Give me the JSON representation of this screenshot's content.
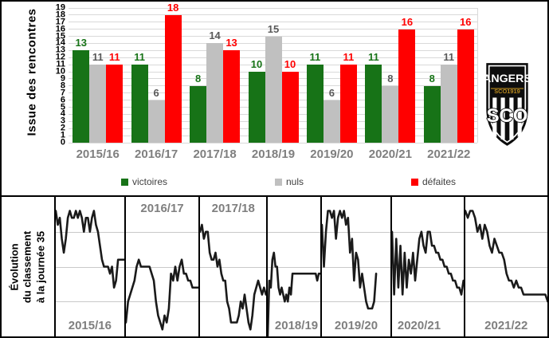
{
  "chart_data": [
    {
      "type": "bar",
      "title": "",
      "ylabel": "Issue des rencontres",
      "xlabel": "",
      "categories": [
        "2015/16",
        "2016/17",
        "2017/18",
        "2018/19",
        "2019/20",
        "2020/21",
        "2021/22"
      ],
      "series": [
        {
          "name": "victoires",
          "color": "#177317",
          "label_color": "#177317",
          "values": [
            13,
            11,
            8,
            10,
            11,
            11,
            8
          ]
        },
        {
          "name": "nuls",
          "color": "#c0c0c0",
          "label_color": "#595959",
          "values": [
            11,
            6,
            14,
            15,
            6,
            8,
            11
          ]
        },
        {
          "name": "défaites",
          "color": "#ff0000",
          "label_color": "#ff0000",
          "values": [
            11,
            18,
            13,
            10,
            11,
            16,
            16
          ]
        }
      ],
      "ylim": [
        0,
        19
      ],
      "ytick_step": 1,
      "grid": true,
      "legend_position": "bottom"
    },
    {
      "type": "line",
      "title": "Évolution du classement à la journée 35",
      "ylabel_lines": [
        "Évolution",
        "du classement",
        "à la journée 35"
      ],
      "y_axis": "classement (1 = premier, 20 = dernier, axe inversé)",
      "ylim": [
        1,
        20
      ],
      "gridlines_at": [
        5,
        10,
        15
      ],
      "x_max_journee": 35,
      "line_color": "#1a1a1a",
      "panels": [
        {
          "season": "2015/16",
          "label_pos": "bottom-center",
          "rankings": [
            2,
            4,
            3,
            6,
            8,
            6,
            3,
            2,
            3,
            3,
            2,
            3,
            2,
            3,
            5,
            3,
            3,
            5,
            3,
            2,
            4,
            5,
            7,
            9,
            10,
            10,
            10,
            11,
            10,
            13,
            12,
            9,
            9,
            9,
            9
          ]
        },
        {
          "season": "2016/17",
          "label_pos": "top-center",
          "rankings": [
            18,
            15,
            14,
            13,
            12,
            10,
            9,
            10,
            10,
            10,
            10,
            10,
            11,
            12,
            15,
            17,
            18,
            19,
            17,
            18,
            16,
            11,
            12,
            10,
            12,
            10,
            9,
            11,
            11,
            12,
            12,
            13,
            13,
            13,
            13
          ]
        },
        {
          "season": "2017/18",
          "label_pos": "top-center",
          "rankings": [
            5,
            4,
            6,
            5,
            5,
            8,
            9,
            9,
            8,
            10,
            9,
            11,
            12,
            12,
            15,
            16,
            18,
            18,
            18,
            18,
            17,
            15,
            16,
            14,
            16,
            18,
            19,
            17,
            14,
            13,
            12,
            13,
            14,
            13,
            14
          ]
        },
        {
          "season": "2018/19",
          "label_pos": "bottom-right",
          "rankings": [
            20,
            12,
            13,
            9,
            8,
            10,
            10,
            13,
            14,
            13,
            14,
            15,
            14,
            15,
            13,
            14,
            11,
            11,
            11,
            11,
            11,
            11,
            11,
            11,
            11,
            11,
            11,
            11,
            11,
            11,
            11,
            11,
            12,
            11,
            11
          ]
        },
        {
          "season": "2019/20",
          "label_pos": "bottom-center",
          "rankings": [
            4,
            10,
            5,
            2,
            2,
            3,
            2,
            6,
            3,
            2,
            3,
            2,
            4,
            3,
            8,
            6,
            12,
            8,
            9,
            13,
            11,
            13,
            15,
            16,
            16,
            16,
            15,
            11
          ]
        },
        {
          "season": "2020/21",
          "label_pos": "bottom-left",
          "rankings": [
            5,
            14,
            6,
            13,
            7,
            14,
            8,
            13,
            9,
            11,
            8,
            12,
            9,
            6,
            5,
            7,
            8,
            5,
            5,
            7,
            7,
            8,
            8,
            9,
            9,
            10,
            10,
            11,
            11,
            12,
            12,
            13,
            13,
            14,
            12
          ]
        },
        {
          "season": "2021/22",
          "label_pos": "bottom-center",
          "rankings": [
            2,
            3,
            2,
            2,
            3,
            5,
            4,
            6,
            4,
            5,
            7,
            8,
            6,
            7,
            8,
            8,
            9,
            11,
            12,
            12,
            13,
            12,
            13,
            13,
            14,
            14,
            14,
            14,
            14,
            14,
            14,
            14,
            14,
            14,
            15
          ]
        }
      ]
    }
  ],
  "logo": {
    "line1": "ANGERS",
    "line2": "SCO1919",
    "line3": "SCO",
    "shield_color": "#0d0d0d",
    "accent_gold": "#b98a1e"
  }
}
